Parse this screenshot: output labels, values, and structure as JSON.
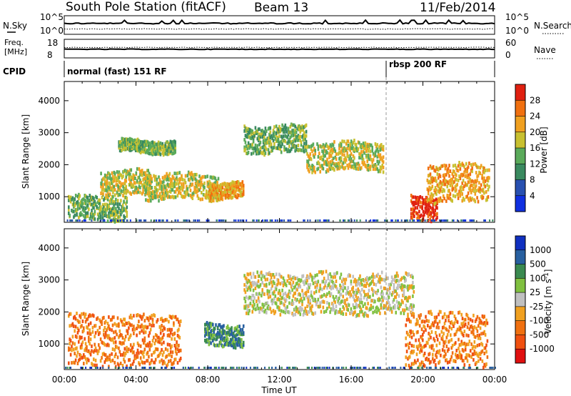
{
  "header": {
    "station": "South Pole Station (fitACF)",
    "beam": "Beam 13",
    "date": "11/Feb/2014"
  },
  "strips": {
    "nsky_label": "N.Sky",
    "nsearch_label": "N.Search",
    "freq_label": "Freq.",
    "freq_unit": "[MHz]",
    "nave_label": "Nave",
    "cpid_label": "CPID",
    "left_ticks_top": [
      "10^5",
      "10^0"
    ],
    "right_ticks_top": [
      "10^5",
      "10^0"
    ],
    "freq_ticks": [
      "18",
      "8"
    ],
    "nave_ticks": [
      "60",
      "0"
    ],
    "cpid_segments": [
      {
        "label": "normal (fast) 151 RF",
        "start_hour": 0
      },
      {
        "label": "rbsp 200 RF",
        "start_hour": 18.1
      }
    ]
  },
  "colorbars": {
    "power": {
      "label": "Power [dB]",
      "ticks": [
        "4",
        "8",
        "12",
        "16",
        "20",
        "24",
        "28"
      ],
      "colors": [
        "#1030e0",
        "#2850b0",
        "#3a8a60",
        "#5aaa5a",
        "#c8c030",
        "#f0a020",
        "#f07010",
        "#e02010"
      ]
    },
    "velocity": {
      "label": "Velocity [m s",
      "label_sup": "-1",
      "label_end": "]",
      "ticks": [
        "1000",
        "500",
        "100",
        "25",
        "-25",
        "-100",
        "-500",
        "-1000"
      ],
      "colors": [
        "#1030c0",
        "#2860a0",
        "#3a8a50",
        "#80c040",
        "#c0c0c0",
        "#f0a020",
        "#f07010",
        "#f05010",
        "#e01010"
      ]
    }
  },
  "chart_data": [
    {
      "type": "heatmap",
      "panel": "power",
      "ylabel": "Slant Range [km]",
      "ylim": [
        200,
        4600
      ],
      "xlim": [
        0,
        24
      ],
      "y_ticks": [
        1000,
        2000,
        3000,
        4000
      ],
      "x_tick_labels": [
        "00:00",
        "04:00",
        "08:00",
        "12:00",
        "16:00",
        "20:00",
        "00:00"
      ],
      "x_ticks_hours": [
        0,
        4,
        8,
        12,
        16,
        20,
        24
      ],
      "echo_bands": [
        {
          "t0": 0.2,
          "t1": 3.5,
          "r0": 250,
          "r1": 1000,
          "level": 3
        },
        {
          "t0": 2.0,
          "t1": 4.8,
          "r0": 1000,
          "r1": 1800,
          "level": 4
        },
        {
          "t0": 3.0,
          "t1": 6.2,
          "r0": 2350,
          "r1": 2750,
          "level": 3
        },
        {
          "t0": 4.5,
          "t1": 8.6,
          "r0": 900,
          "r1": 1700,
          "level": 4
        },
        {
          "t0": 8.0,
          "t1": 10.0,
          "r0": 900,
          "r1": 1400,
          "level": 5
        },
        {
          "t0": 10.0,
          "t1": 13.5,
          "r0": 2350,
          "r1": 3200,
          "level": 3
        },
        {
          "t0": 13.5,
          "t1": 17.8,
          "r0": 1800,
          "r1": 2700,
          "level": 4
        },
        {
          "t0": 19.3,
          "t1": 20.8,
          "r0": 250,
          "r1": 1000,
          "level": 7
        },
        {
          "t0": 20.2,
          "t1": 23.7,
          "r0": 800,
          "r1": 2000,
          "level": 5
        }
      ]
    },
    {
      "type": "heatmap",
      "panel": "velocity",
      "ylabel": "Slant Range [km]",
      "xlabel": "Time UT",
      "ylim": [
        200,
        4600
      ],
      "xlim": [
        0,
        24
      ],
      "y_ticks": [
        1000,
        2000,
        3000,
        4000
      ],
      "x_tick_labels": [
        "00:00",
        "04:00",
        "08:00",
        "12:00",
        "16:00",
        "20:00",
        "00:00"
      ],
      "x_ticks_hours": [
        0,
        4,
        8,
        12,
        16,
        20,
        24
      ],
      "echo_bands": [
        {
          "t0": 0.2,
          "t1": 6.5,
          "r0": 300,
          "r1": 1900,
          "level": 6
        },
        {
          "t0": 7.8,
          "t1": 10.0,
          "r0": 900,
          "r1": 1600,
          "level": 2
        },
        {
          "t0": 10.0,
          "t1": 19.5,
          "r0": 1900,
          "r1": 3200,
          "level": 4
        },
        {
          "t0": 19.0,
          "t1": 23.6,
          "r0": 300,
          "r1": 2000,
          "level": 6
        }
      ]
    }
  ]
}
